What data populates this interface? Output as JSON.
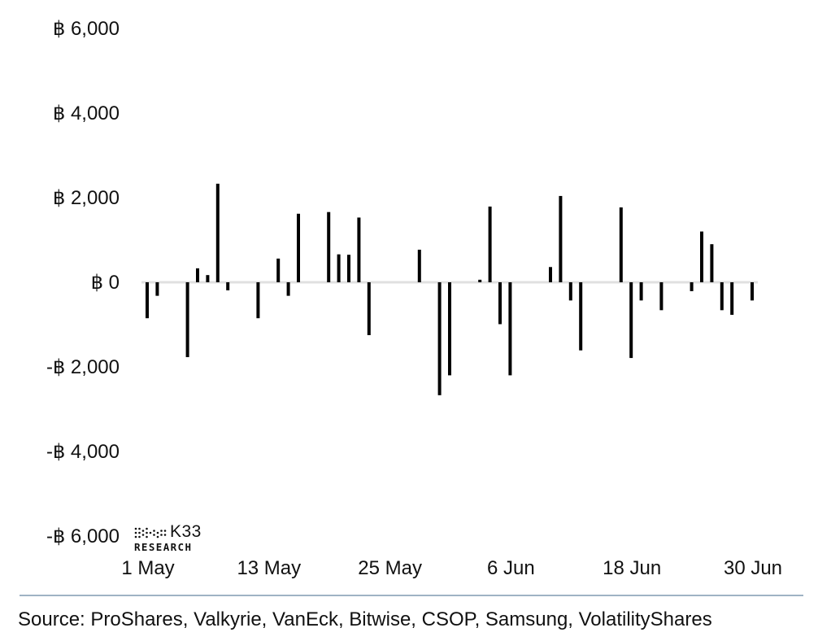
{
  "chart_data": {
    "type": "bar",
    "y_tick_labels": [
      "฿ 6,000",
      "฿ 4,000",
      "฿ 2,000",
      "฿ 0",
      "-฿ 2,000",
      "-฿ 4,000",
      "-฿ 6,000"
    ],
    "y_ticks": [
      6000,
      4000,
      2000,
      0,
      -2000,
      -4000,
      -6000
    ],
    "ylim": [
      -6000,
      6000
    ],
    "x_tick_labels": [
      "1 May",
      "13 May",
      "25 May",
      "6 Jun",
      "18 Jun",
      "30 Jun"
    ],
    "xlim": [
      "2024-05-01",
      "2024-06-30"
    ],
    "grid": false,
    "legend": "none",
    "bar_color": "#000000",
    "zero_line_color": "#e0e0e0",
    "points": [
      {
        "date": "2024-05-01",
        "value": -850
      },
      {
        "date": "2024-05-02",
        "value": -320
      },
      {
        "date": "2024-05-05",
        "value": -1770
      },
      {
        "date": "2024-05-06",
        "value": 330
      },
      {
        "date": "2024-05-07",
        "value": 170
      },
      {
        "date": "2024-05-08",
        "value": 2330
      },
      {
        "date": "2024-05-09",
        "value": -190
      },
      {
        "date": "2024-05-12",
        "value": -850
      },
      {
        "date": "2024-05-14",
        "value": 560
      },
      {
        "date": "2024-05-15",
        "value": -320
      },
      {
        "date": "2024-05-16",
        "value": 1620
      },
      {
        "date": "2024-05-19",
        "value": 1660
      },
      {
        "date": "2024-05-20",
        "value": 660
      },
      {
        "date": "2024-05-21",
        "value": 650
      },
      {
        "date": "2024-05-22",
        "value": 1530
      },
      {
        "date": "2024-05-23",
        "value": -1250
      },
      {
        "date": "2024-05-28",
        "value": 770
      },
      {
        "date": "2024-05-30",
        "value": -2670
      },
      {
        "date": "2024-05-31",
        "value": -2200
      },
      {
        "date": "2024-06-03",
        "value": 60
      },
      {
        "date": "2024-06-04",
        "value": 1790
      },
      {
        "date": "2024-06-05",
        "value": -990
      },
      {
        "date": "2024-06-06",
        "value": -2200
      },
      {
        "date": "2024-06-10",
        "value": 360
      },
      {
        "date": "2024-06-11",
        "value": 2040
      },
      {
        "date": "2024-06-12",
        "value": -430
      },
      {
        "date": "2024-06-13",
        "value": -1610
      },
      {
        "date": "2024-06-17",
        "value": 1770
      },
      {
        "date": "2024-06-18",
        "value": -1790
      },
      {
        "date": "2024-06-19",
        "value": -430
      },
      {
        "date": "2024-06-21",
        "value": -660
      },
      {
        "date": "2024-06-24",
        "value": -210
      },
      {
        "date": "2024-06-25",
        "value": 1200
      },
      {
        "date": "2024-06-26",
        "value": 900
      },
      {
        "date": "2024-06-27",
        "value": -660
      },
      {
        "date": "2024-06-28",
        "value": -770
      },
      {
        "date": "2024-06-30",
        "value": -430
      }
    ]
  },
  "logo": {
    "name": "K33",
    "subtitle": "RESEARCH"
  },
  "source_text": "Source: ProShares, Valkyrie, VanEck, Bitwise, CSOP, Samsung, VolatilityShares"
}
